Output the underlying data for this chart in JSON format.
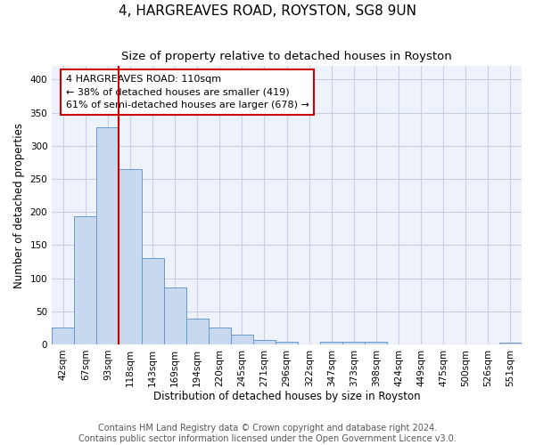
{
  "title": "4, HARGREAVES ROAD, ROYSTON, SG8 9UN",
  "subtitle": "Size of property relative to detached houses in Royston",
  "xlabel": "Distribution of detached houses by size in Royston",
  "ylabel": "Number of detached properties",
  "categories": [
    "42sqm",
    "67sqm",
    "93sqm",
    "118sqm",
    "143sqm",
    "169sqm",
    "194sqm",
    "220sqm",
    "245sqm",
    "271sqm",
    "296sqm",
    "322sqm",
    "347sqm",
    "373sqm",
    "398sqm",
    "424sqm",
    "449sqm",
    "475sqm",
    "500sqm",
    "526sqm",
    "551sqm"
  ],
  "values": [
    25,
    193,
    328,
    265,
    130,
    86,
    39,
    26,
    15,
    6,
    4,
    0,
    4,
    4,
    4,
    0,
    0,
    0,
    0,
    0,
    3
  ],
  "bar_color": "#c8d8ef",
  "bar_edge_color": "#6699cc",
  "red_line_index": 3,
  "red_line_color": "#cc0000",
  "annotation_text": "4 HARGREAVES ROAD: 110sqm\n← 38% of detached houses are smaller (419)\n61% of semi-detached houses are larger (678) →",
  "annotation_box_color": "#ffffff",
  "annotation_box_edge_color": "#cc0000",
  "ylim": [
    0,
    420
  ],
  "yticks": [
    0,
    50,
    100,
    150,
    200,
    250,
    300,
    350,
    400
  ],
  "footer_line1": "Contains HM Land Registry data © Crown copyright and database right 2024.",
  "footer_line2": "Contains public sector information licensed under the Open Government Licence v3.0.",
  "background_color": "#ffffff",
  "plot_bg_color": "#eef2fa",
  "grid_color": "#c8d0e8",
  "title_fontsize": 11,
  "subtitle_fontsize": 9.5,
  "axis_label_fontsize": 8.5,
  "tick_fontsize": 7.5,
  "annotation_fontsize": 8,
  "footer_fontsize": 7
}
